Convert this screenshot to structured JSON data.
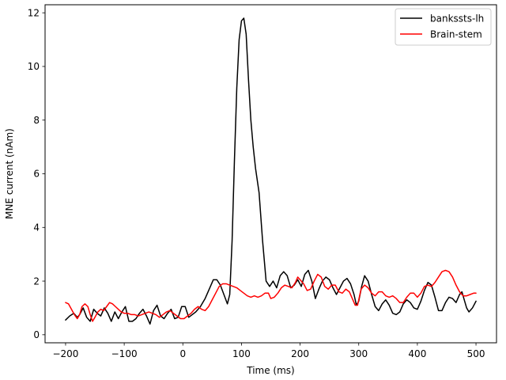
{
  "chart_data": {
    "type": "line",
    "title": "",
    "xlabel": "Time (ms)",
    "ylabel": "MNE current (nAm)",
    "xlim": [
      -235,
      535
    ],
    "ylim": [
      -0.3,
      12.3
    ],
    "xticks": [
      -200,
      -100,
      0,
      100,
      200,
      300,
      400,
      500
    ],
    "yticks": [
      0,
      2,
      4,
      6,
      8,
      10,
      12
    ],
    "grid": false,
    "legend_position": "top-right",
    "series": [
      {
        "name": "bankssts-lh",
        "color": "#000000",
        "points": [
          [
            -200,
            0.55
          ],
          [
            -193,
            0.7
          ],
          [
            -186,
            0.8
          ],
          [
            -180,
            0.65
          ],
          [
            -176,
            0.75
          ],
          [
            -170,
            1.0
          ],
          [
            -164,
            0.65
          ],
          [
            -158,
            0.5
          ],
          [
            -152,
            0.95
          ],
          [
            -146,
            0.8
          ],
          [
            -140,
            0.7
          ],
          [
            -134,
            1.0
          ],
          [
            -128,
            0.8
          ],
          [
            -122,
            0.5
          ],
          [
            -116,
            0.85
          ],
          [
            -110,
            0.6
          ],
          [
            -104,
            0.85
          ],
          [
            -98,
            1.05
          ],
          [
            -92,
            0.5
          ],
          [
            -86,
            0.5
          ],
          [
            -80,
            0.6
          ],
          [
            -74,
            0.8
          ],
          [
            -68,
            0.95
          ],
          [
            -62,
            0.7
          ],
          [
            -56,
            0.4
          ],
          [
            -50,
            0.9
          ],
          [
            -44,
            1.1
          ],
          [
            -38,
            0.7
          ],
          [
            -32,
            0.6
          ],
          [
            -26,
            0.8
          ],
          [
            -20,
            0.95
          ],
          [
            -14,
            0.6
          ],
          [
            -8,
            0.65
          ],
          [
            -2,
            1.05
          ],
          [
            4,
            1.05
          ],
          [
            10,
            0.65
          ],
          [
            16,
            0.75
          ],
          [
            22,
            0.85
          ],
          [
            30,
            1.05
          ],
          [
            38,
            1.35
          ],
          [
            46,
            1.75
          ],
          [
            52,
            2.05
          ],
          [
            58,
            2.05
          ],
          [
            64,
            1.85
          ],
          [
            70,
            1.5
          ],
          [
            76,
            1.15
          ],
          [
            80,
            1.5
          ],
          [
            84,
            3.5
          ],
          [
            88,
            6.5
          ],
          [
            92,
            9.2
          ],
          [
            96,
            11.0
          ],
          [
            100,
            11.7
          ],
          [
            104,
            11.8
          ],
          [
            108,
            11.2
          ],
          [
            112,
            9.5
          ],
          [
            116,
            8.0
          ],
          [
            120,
            7.0
          ],
          [
            124,
            6.2
          ],
          [
            130,
            5.3
          ],
          [
            136,
            3.5
          ],
          [
            142,
            2.0
          ],
          [
            148,
            1.8
          ],
          [
            154,
            2.0
          ],
          [
            160,
            1.75
          ],
          [
            166,
            2.2
          ],
          [
            172,
            2.35
          ],
          [
            178,
            2.2
          ],
          [
            184,
            1.75
          ],
          [
            190,
            1.85
          ],
          [
            196,
            2.05
          ],
          [
            202,
            1.8
          ],
          [
            208,
            2.25
          ],
          [
            214,
            2.4
          ],
          [
            220,
            2.0
          ],
          [
            226,
            1.35
          ],
          [
            232,
            1.7
          ],
          [
            238,
            2.0
          ],
          [
            244,
            2.15
          ],
          [
            250,
            2.05
          ],
          [
            256,
            1.75
          ],
          [
            262,
            1.5
          ],
          [
            268,
            1.75
          ],
          [
            274,
            2.0
          ],
          [
            280,
            2.1
          ],
          [
            286,
            1.9
          ],
          [
            292,
            1.5
          ],
          [
            296,
            1.1
          ],
          [
            300,
            1.25
          ],
          [
            305,
            1.8
          ],
          [
            310,
            2.2
          ],
          [
            316,
            2.0
          ],
          [
            322,
            1.5
          ],
          [
            328,
            1.05
          ],
          [
            334,
            0.9
          ],
          [
            340,
            1.15
          ],
          [
            346,
            1.3
          ],
          [
            352,
            1.1
          ],
          [
            358,
            0.8
          ],
          [
            364,
            0.75
          ],
          [
            370,
            0.85
          ],
          [
            376,
            1.15
          ],
          [
            382,
            1.3
          ],
          [
            388,
            1.2
          ],
          [
            394,
            1.0
          ],
          [
            400,
            0.95
          ],
          [
            406,
            1.25
          ],
          [
            412,
            1.65
          ],
          [
            418,
            1.95
          ],
          [
            424,
            1.85
          ],
          [
            430,
            1.4
          ],
          [
            436,
            0.9
          ],
          [
            442,
            0.9
          ],
          [
            448,
            1.2
          ],
          [
            454,
            1.4
          ],
          [
            460,
            1.35
          ],
          [
            466,
            1.2
          ],
          [
            472,
            1.5
          ],
          [
            476,
            1.6
          ],
          [
            480,
            1.3
          ],
          [
            484,
            1.0
          ],
          [
            488,
            0.85
          ],
          [
            494,
            1.0
          ],
          [
            500,
            1.25
          ]
        ]
      },
      {
        "name": "Brain-stem",
        "color": "#ff0000",
        "points": [
          [
            -200,
            1.2
          ],
          [
            -195,
            1.15
          ],
          [
            -190,
            0.95
          ],
          [
            -185,
            0.75
          ],
          [
            -180,
            0.6
          ],
          [
            -176,
            0.75
          ],
          [
            -172,
            1.05
          ],
          [
            -167,
            1.15
          ],
          [
            -162,
            1.05
          ],
          [
            -158,
            0.75
          ],
          [
            -154,
            0.5
          ],
          [
            -150,
            0.65
          ],
          [
            -145,
            0.85
          ],
          [
            -140,
            0.95
          ],
          [
            -135,
            0.9
          ],
          [
            -130,
            1.05
          ],
          [
            -125,
            1.2
          ],
          [
            -120,
            1.15
          ],
          [
            -115,
            1.05
          ],
          [
            -110,
            0.95
          ],
          [
            -105,
            0.85
          ],
          [
            -100,
            0.8
          ],
          [
            -94,
            0.8
          ],
          [
            -88,
            0.75
          ],
          [
            -82,
            0.75
          ],
          [
            -76,
            0.7
          ],
          [
            -70,
            0.75
          ],
          [
            -64,
            0.8
          ],
          [
            -58,
            0.85
          ],
          [
            -52,
            0.8
          ],
          [
            -46,
            0.75
          ],
          [
            -40,
            0.65
          ],
          [
            -34,
            0.75
          ],
          [
            -28,
            0.85
          ],
          [
            -22,
            0.9
          ],
          [
            -16,
            0.8
          ],
          [
            -10,
            0.7
          ],
          [
            -4,
            0.6
          ],
          [
            2,
            0.6
          ],
          [
            8,
            0.7
          ],
          [
            14,
            0.8
          ],
          [
            20,
            0.95
          ],
          [
            26,
            1.05
          ],
          [
            32,
            0.95
          ],
          [
            38,
            0.9
          ],
          [
            44,
            1.05
          ],
          [
            50,
            1.3
          ],
          [
            56,
            1.55
          ],
          [
            62,
            1.8
          ],
          [
            68,
            1.9
          ],
          [
            74,
            1.9
          ],
          [
            80,
            1.85
          ],
          [
            86,
            1.8
          ],
          [
            92,
            1.75
          ],
          [
            98,
            1.65
          ],
          [
            104,
            1.55
          ],
          [
            110,
            1.45
          ],
          [
            116,
            1.4
          ],
          [
            122,
            1.45
          ],
          [
            128,
            1.4
          ],
          [
            134,
            1.45
          ],
          [
            140,
            1.55
          ],
          [
            146,
            1.55
          ],
          [
            150,
            1.35
          ],
          [
            156,
            1.4
          ],
          [
            162,
            1.55
          ],
          [
            168,
            1.75
          ],
          [
            174,
            1.85
          ],
          [
            180,
            1.8
          ],
          [
            186,
            1.75
          ],
          [
            192,
            1.95
          ],
          [
            196,
            2.15
          ],
          [
            200,
            2.05
          ],
          [
            206,
            1.9
          ],
          [
            212,
            1.65
          ],
          [
            218,
            1.7
          ],
          [
            224,
            2.0
          ],
          [
            230,
            2.25
          ],
          [
            236,
            2.15
          ],
          [
            242,
            1.8
          ],
          [
            248,
            1.7
          ],
          [
            254,
            1.85
          ],
          [
            260,
            1.85
          ],
          [
            266,
            1.6
          ],
          [
            272,
            1.55
          ],
          [
            278,
            1.7
          ],
          [
            284,
            1.6
          ],
          [
            290,
            1.3
          ],
          [
            294,
            1.1
          ],
          [
            298,
            1.1
          ],
          [
            304,
            1.7
          ],
          [
            310,
            1.85
          ],
          [
            316,
            1.75
          ],
          [
            322,
            1.55
          ],
          [
            328,
            1.45
          ],
          [
            334,
            1.6
          ],
          [
            340,
            1.6
          ],
          [
            346,
            1.45
          ],
          [
            352,
            1.4
          ],
          [
            358,
            1.45
          ],
          [
            364,
            1.35
          ],
          [
            370,
            1.2
          ],
          [
            376,
            1.2
          ],
          [
            382,
            1.4
          ],
          [
            388,
            1.55
          ],
          [
            394,
            1.55
          ],
          [
            400,
            1.4
          ],
          [
            406,
            1.55
          ],
          [
            412,
            1.8
          ],
          [
            418,
            1.85
          ],
          [
            424,
            1.8
          ],
          [
            430,
            1.95
          ],
          [
            436,
            2.15
          ],
          [
            442,
            2.35
          ],
          [
            448,
            2.4
          ],
          [
            454,
            2.35
          ],
          [
            460,
            2.15
          ],
          [
            466,
            1.85
          ],
          [
            472,
            1.6
          ],
          [
            478,
            1.45
          ],
          [
            484,
            1.45
          ],
          [
            490,
            1.5
          ],
          [
            496,
            1.55
          ],
          [
            500,
            1.55
          ]
        ]
      }
    ]
  }
}
